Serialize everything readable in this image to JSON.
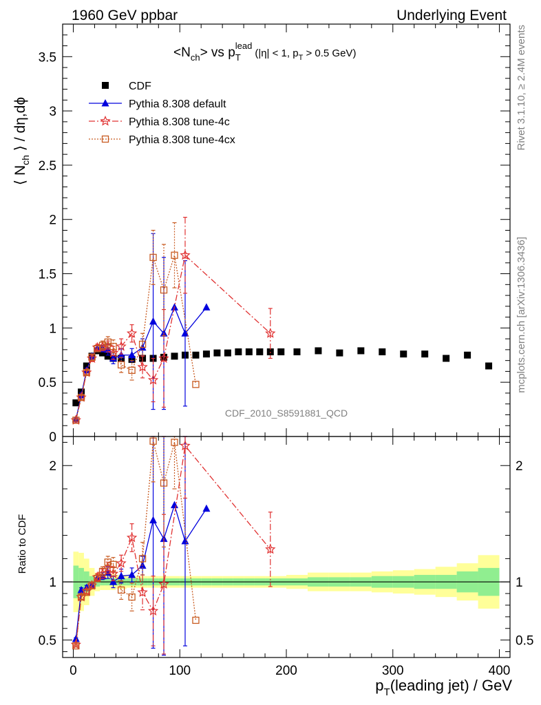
{
  "header": {
    "left": "1960 GeV ppbar",
    "right": "Underlying Event"
  },
  "side_labels": {
    "rivet": "Rivet 3.1.10, ≥ 2.4M events",
    "mcplots": "mcplots.cern.ch [arXiv:1306.3436]"
  },
  "chart_data": {
    "type": "scatter",
    "title": "<Nch> vs pT^lead (|η| < 1, pT > 0.5 GeV)",
    "title_parts": {
      "main": "<N",
      "sub1": "ch",
      "mid": "> vs p",
      "sub2": "T",
      "sup": "lead",
      "cut_a": "(|η| < 1, p",
      "cut_sub": "T",
      "cut_b": " > 0.5 GeV)"
    },
    "watermark": "CDF_2010_S8591881_QCD",
    "xlabel": "p_T(leading jet) / GeV",
    "xlabel_parts": {
      "p": "p",
      "sub": "T",
      "rest": "(leading jet) / GeV"
    },
    "ylabel": "⟨ N_ch ⟩ / dη,dϕ",
    "ylabel_parts": {
      "a": "⟨ N",
      "sub": "ch",
      "b": " ⟩ / dη,dϕ"
    },
    "ratio_ylabel": "Ratio to CDF",
    "xlim": [
      -10,
      410
    ],
    "ylim": [
      0,
      3.8
    ],
    "ratio_ylim": [
      0.35,
      2.25
    ],
    "xticks": [
      0,
      100,
      200,
      300,
      400
    ],
    "yticks": [
      0,
      0.5,
      1,
      1.5,
      2,
      2.5,
      3,
      3.5
    ],
    "ratio_yticks": [
      0.5,
      1,
      2
    ],
    "legend_position": "top-left",
    "legend": [
      {
        "name": "CDF"
      },
      {
        "name": "Pythia 8.308 default"
      },
      {
        "name": "Pythia 8.308 tune-4c"
      },
      {
        "name": "Pythia 8.308 tune-4cx"
      }
    ],
    "colors": {
      "cdf": "#000000",
      "default": "#0000dd",
      "tune4c": "#e03030",
      "tune4cx": "#c85a20",
      "band_inner": "#90ee90",
      "band_outer": "#ffff99"
    },
    "cdf": {
      "x": [
        2.5,
        7.5,
        12.5,
        17.5,
        22.5,
        27.5,
        32.5,
        37.5,
        45,
        55,
        65,
        75,
        85,
        95,
        105,
        115,
        125,
        135,
        145,
        155,
        165,
        175,
        185,
        195,
        210,
        230,
        250,
        270,
        290,
        310,
        330,
        350,
        370,
        390
      ],
      "y": [
        0.31,
        0.41,
        0.65,
        0.74,
        0.79,
        0.77,
        0.74,
        0.72,
        0.72,
        0.71,
        0.72,
        0.72,
        0.73,
        0.74,
        0.75,
        0.75,
        0.76,
        0.77,
        0.77,
        0.78,
        0.78,
        0.78,
        0.78,
        0.78,
        0.78,
        0.79,
        0.77,
        0.79,
        0.78,
        0.76,
        0.76,
        0.72,
        0.75,
        0.65
      ]
    },
    "series": [
      {
        "name": "Pythia 8.308 default",
        "x": [
          2.5,
          7.5,
          12.5,
          17.5,
          22.5,
          27.5,
          32.5,
          37.5,
          45,
          55,
          65,
          75,
          85,
          95,
          105,
          125
        ],
        "y": [
          0.16,
          0.38,
          0.61,
          0.74,
          0.81,
          0.81,
          0.8,
          0.72,
          0.75,
          0.75,
          0.82,
          1.06,
          0.95,
          1.19,
          0.95,
          1.19
        ],
        "err": [
          0.01,
          0.02,
          0.02,
          0.02,
          0.03,
          0.03,
          0.05,
          0.05,
          0.06,
          0.06,
          0.08,
          0.81,
          0.7,
          0,
          0.67,
          0
        ]
      },
      {
        "name": "Pythia 8.308 tune-4c",
        "x": [
          2.5,
          7.5,
          12.5,
          17.5,
          22.5,
          27.5,
          32.5,
          37.5,
          45,
          55,
          65,
          75,
          85,
          105,
          185
        ],
        "y": [
          0.15,
          0.36,
          0.59,
          0.72,
          0.82,
          0.83,
          0.83,
          0.77,
          0.83,
          0.95,
          0.64,
          0.52,
          0.72,
          1.67,
          0.95
        ],
        "err": [
          0.01,
          0.02,
          0.02,
          0.03,
          0.03,
          0.04,
          0.05,
          0.06,
          0.07,
          0.08,
          0.1,
          0.2,
          0.45,
          0.35,
          0.23
        ]
      },
      {
        "name": "Pythia 8.308 tune-4cx",
        "x": [
          2.5,
          7.5,
          12.5,
          17.5,
          22.5,
          27.5,
          32.5,
          37.5,
          45,
          55,
          65,
          75,
          85,
          95,
          115
        ],
        "y": [
          0.15,
          0.36,
          0.59,
          0.73,
          0.81,
          0.84,
          0.87,
          0.83,
          0.66,
          0.61,
          0.85,
          1.65,
          1.35,
          1.67,
          0.48
        ],
        "err": [
          0.01,
          0.02,
          0.02,
          0.03,
          0.03,
          0.04,
          0.05,
          0.06,
          0.07,
          0.09,
          0.1,
          0.25,
          0.42,
          0.3,
          0
        ]
      }
    ],
    "ratio_series": [
      {
        "name": "Pythia 8.308 default",
        "x": [
          2.5,
          7.5,
          12.5,
          17.5,
          22.5,
          27.5,
          32.5,
          37.5,
          45,
          55,
          65,
          75,
          85,
          95,
          105,
          125
        ],
        "y": [
          0.51,
          0.93,
          0.95,
          0.97,
          1.03,
          1.05,
          1.08,
          1.0,
          1.05,
          1.06,
          1.14,
          1.53,
          1.37,
          1.66,
          1.35,
          1.63
        ],
        "err": [
          0.01,
          0.02,
          0.02,
          0.02,
          0.03,
          0.03,
          0.05,
          0.05,
          0.06,
          0.06,
          0.08,
          1.1,
          1.0,
          0,
          0.9,
          0
        ]
      },
      {
        "name": "Pythia 8.308 tune-4c",
        "x": [
          2.5,
          7.5,
          12.5,
          17.5,
          22.5,
          27.5,
          32.5,
          37.5,
          45,
          55,
          65,
          75,
          85,
          105,
          185
        ],
        "y": [
          0.46,
          0.87,
          0.92,
          0.97,
          1.04,
          1.07,
          1.12,
          1.07,
          1.16,
          1.38,
          0.91,
          0.75,
          0.98,
          2.17,
          1.28
        ],
        "err": [
          0.01,
          0.02,
          0.02,
          0.03,
          0.03,
          0.04,
          0.05,
          0.06,
          0.07,
          0.12,
          0.15,
          0.3,
          0.6,
          0.45,
          0.32
        ]
      },
      {
        "name": "Pythia 8.308 tune-4cx",
        "x": [
          2.5,
          7.5,
          12.5,
          17.5,
          22.5,
          27.5,
          32.5,
          37.5,
          45,
          55,
          65,
          75,
          85,
          95,
          115
        ],
        "y": [
          0.45,
          0.87,
          0.91,
          0.97,
          1.03,
          1.09,
          1.17,
          1.15,
          0.93,
          0.87,
          1.2,
          2.21,
          1.85,
          2.2,
          0.67
        ],
        "err": [
          0.01,
          0.02,
          0.02,
          0.03,
          0.03,
          0.04,
          0.05,
          0.06,
          0.08,
          0.12,
          0.14,
          0.35,
          0.55,
          0.4,
          0
        ]
      }
    ],
    "ratio_band": {
      "edges": [
        0,
        5,
        10,
        15,
        20,
        25,
        30,
        35,
        40,
        50,
        60,
        70,
        80,
        90,
        100,
        110,
        120,
        130,
        140,
        150,
        160,
        170,
        180,
        190,
        200,
        220,
        240,
        260,
        280,
        300,
        320,
        340,
        360,
        380,
        400
      ],
      "inner": [
        0.14,
        0.12,
        0.09,
        0.05,
        0.04,
        0.03,
        0.03,
        0.03,
        0.03,
        0.03,
        0.03,
        0.03,
        0.03,
        0.03,
        0.03,
        0.03,
        0.03,
        0.03,
        0.03,
        0.03,
        0.03,
        0.03,
        0.03,
        0.03,
        0.03,
        0.04,
        0.04,
        0.04,
        0.05,
        0.05,
        0.06,
        0.06,
        0.09,
        0.12
      ],
      "outer": [
        0.26,
        0.25,
        0.2,
        0.12,
        0.08,
        0.07,
        0.07,
        0.07,
        0.06,
        0.05,
        0.05,
        0.05,
        0.05,
        0.05,
        0.05,
        0.05,
        0.05,
        0.05,
        0.05,
        0.05,
        0.05,
        0.05,
        0.05,
        0.05,
        0.06,
        0.08,
        0.08,
        0.08,
        0.09,
        0.1,
        0.11,
        0.13,
        0.16,
        0.23
      ]
    }
  }
}
